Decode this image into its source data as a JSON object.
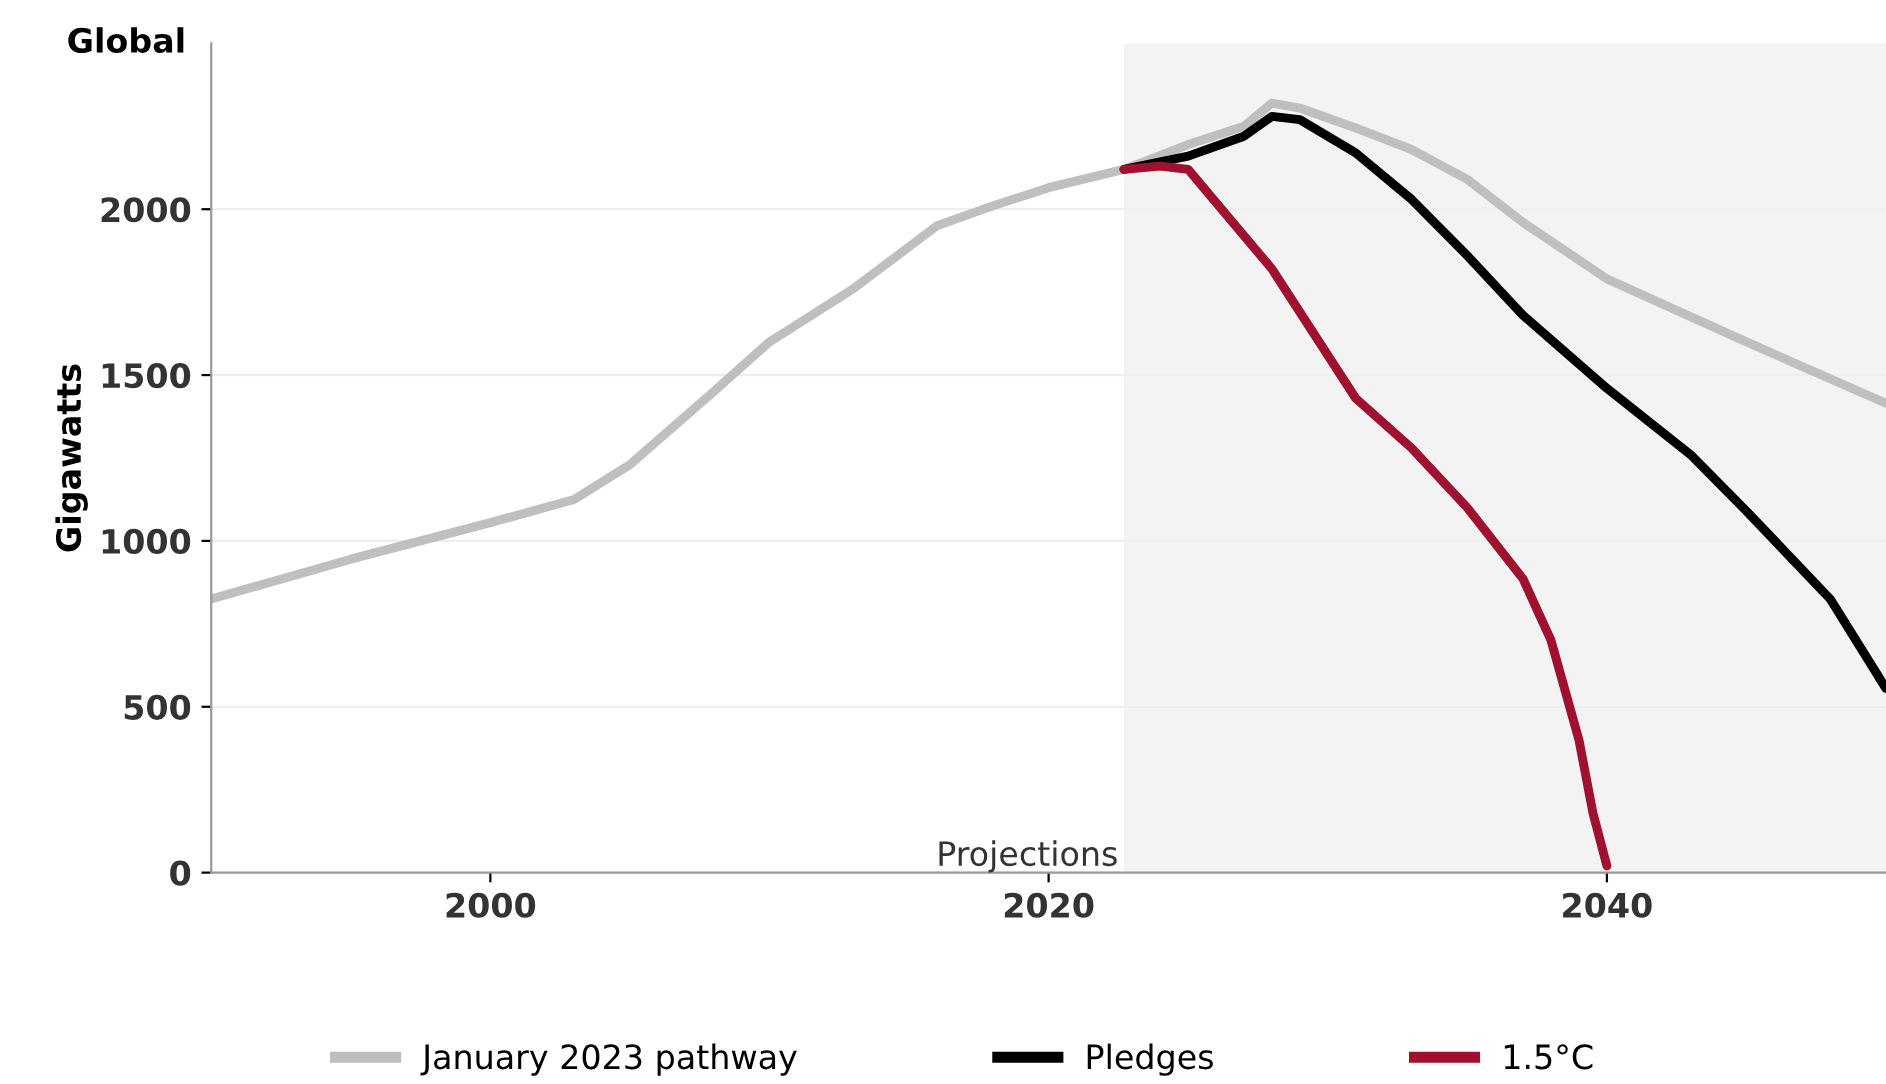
{
  "chart_data": {
    "type": "line",
    "title": "Global",
    "ylabel": "Gigawatts",
    "xlim": [
      1990,
      2050
    ],
    "ylim": [
      0,
      2500
    ],
    "xticks": [
      2000,
      2020,
      2040
    ],
    "yticks": [
      0,
      500,
      1000,
      1500,
      2000
    ],
    "grid": "y",
    "legend": "bottom",
    "marker": "none",
    "line_style": "solid",
    "bands": [
      {
        "axis": "x",
        "from": 2022.7,
        "to": 2050,
        "label": "Projections",
        "color": "#f3f3f3"
      }
    ],
    "series": [
      {
        "name": "January 2023 pathway",
        "color": "#bfbfbf",
        "x": [
          1990,
          1995,
          2000,
          2003,
          2005,
          2008,
          2010,
          2013,
          2016,
          2018,
          2020,
          2022.7,
          2025,
          2027,
          2028,
          2029,
          2031,
          2033,
          2035,
          2037,
          2040,
          2045,
          2050
        ],
        "values": [
          825,
          945,
          1055,
          1125,
          1230,
          1450,
          1600,
          1760,
          1950,
          2010,
          2065,
          2120,
          2195,
          2250,
          2320,
          2305,
          2245,
          2180,
          2090,
          1960,
          1790,
          1600,
          1415
        ]
      },
      {
        "name": "Pledges",
        "color": "#000000",
        "x": [
          2022.7,
          2025,
          2027,
          2028,
          2029,
          2031,
          2033,
          2035,
          2037,
          2040,
          2043,
          2045,
          2048,
          2050
        ],
        "values": [
          2120,
          2160,
          2220,
          2280,
          2270,
          2170,
          2030,
          1860,
          1680,
          1460,
          1260,
          1090,
          825,
          555
        ]
      },
      {
        "name": "1.5°C",
        "color": "#a0112f",
        "x": [
          2022.7,
          2024,
          2025,
          2026,
          2028,
          2031,
          2033,
          2035,
          2037,
          2038,
          2039,
          2039.5,
          2040
        ],
        "values": [
          2120,
          2130,
          2120,
          2020,
          1820,
          1430,
          1280,
          1100,
          885,
          700,
          400,
          180,
          20
        ]
      }
    ]
  }
}
